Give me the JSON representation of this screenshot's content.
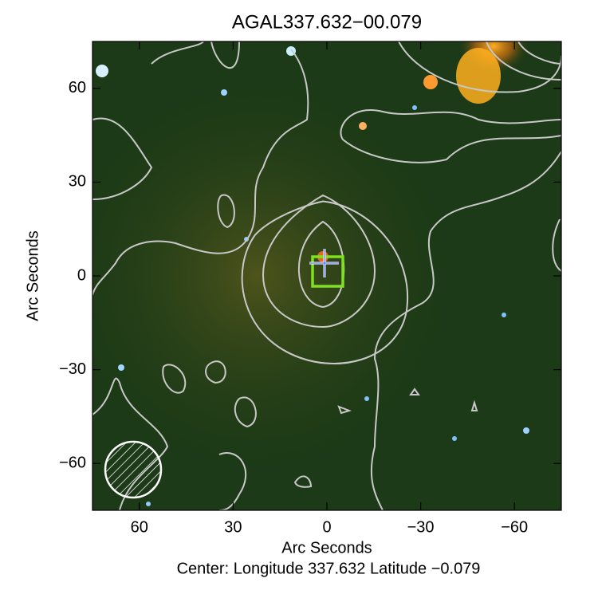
{
  "chart_data": {
    "type": "image",
    "title": "AGAL337.632−00.079",
    "xlabel": "Arc Seconds",
    "ylabel": "Arc Seconds",
    "caption": "Center:  Longitude 337.632 Latitude −0.079",
    "xlim": [
      75,
      -75
    ],
    "ylim": [
      -75,
      75
    ],
    "xticks": [
      60,
      30,
      0,
      {
        "value": -30,
        "label": "−30"
      },
      {
        "value": -60,
        "label": "−60"
      }
    ],
    "yticks": [
      {
        "value": -60,
        "label": "−60"
      },
      {
        "value": -30,
        "label": "−30"
      },
      0,
      30,
      60
    ]
  }
}
